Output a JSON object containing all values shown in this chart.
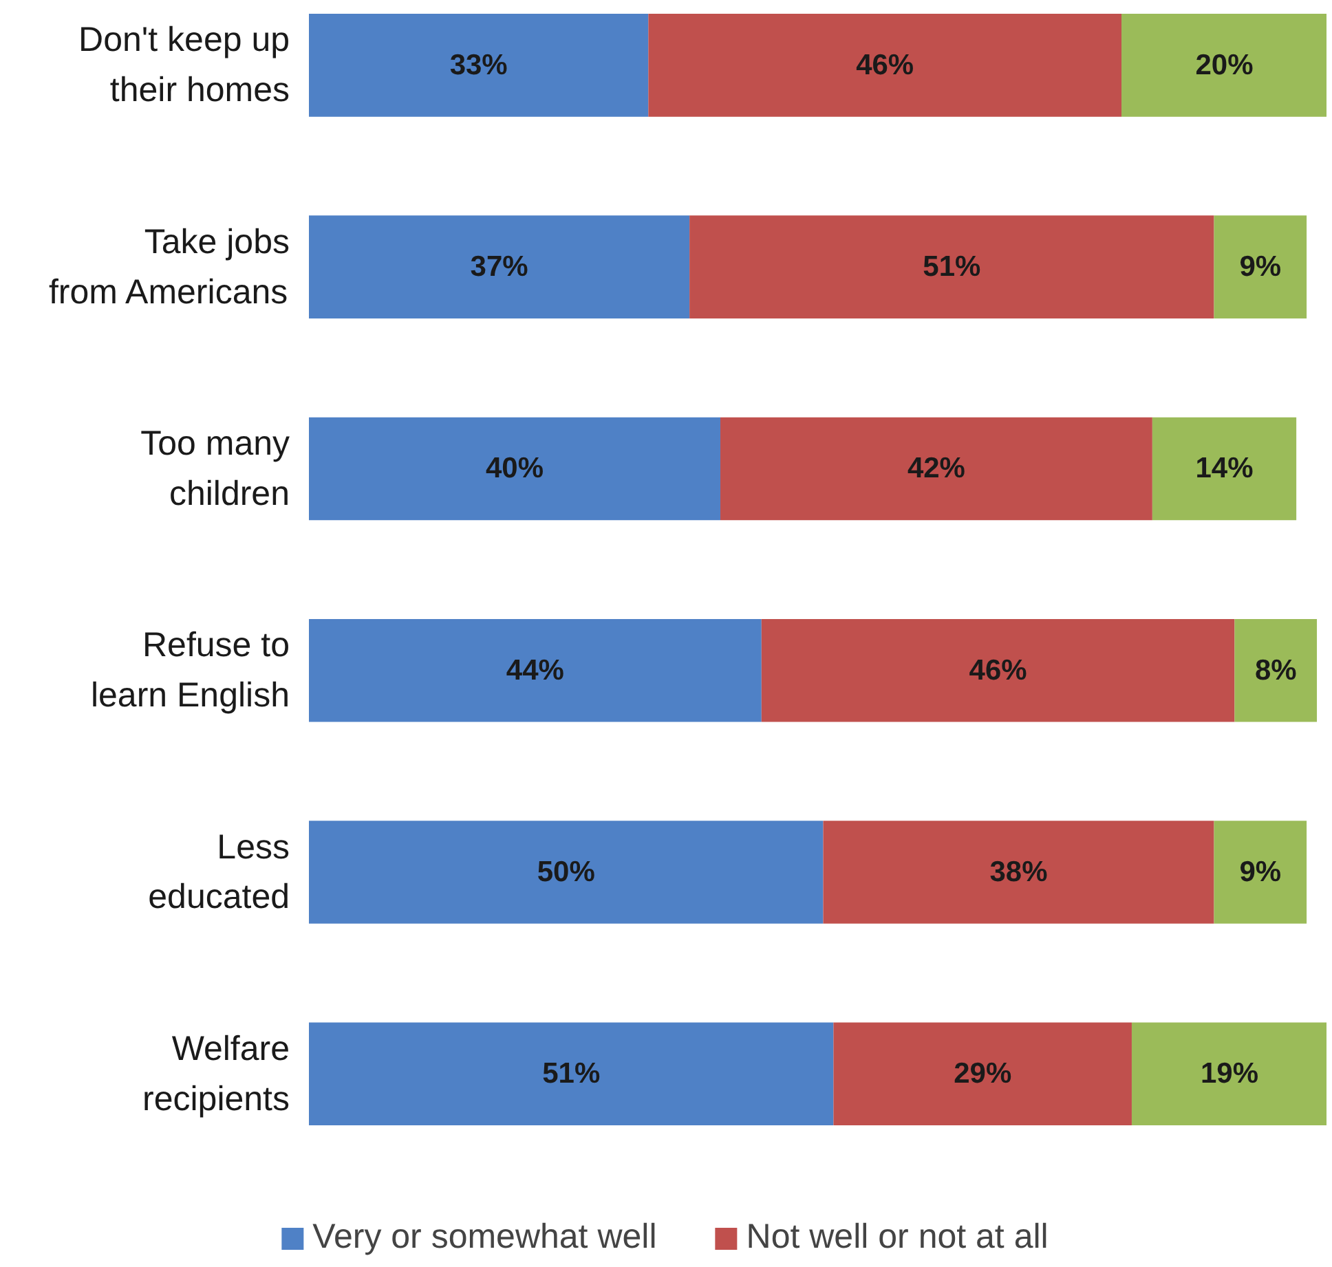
{
  "chart_data": {
    "type": "bar",
    "orientation": "horizontal",
    "stacked": true,
    "legend": "bottom",
    "grid": false,
    "tick_labels": false,
    "categories": [
      "Don't keep up their homes",
      "Take jobs from Americans",
      "Too many children",
      "Refuse to learn English",
      "Less educated",
      "Welfare recipients"
    ],
    "series": [
      {
        "name": "Very or somewhat well",
        "color": "#4f81c6",
        "values": [
          33,
          37,
          40,
          44,
          50,
          51
        ],
        "value_labels": [
          "33%",
          "37%",
          "40%",
          "44%",
          "50%",
          "51%"
        ]
      },
      {
        "name": "Not well or not at all",
        "color": "#c0504d",
        "values": [
          46,
          51,
          42,
          46,
          38,
          29
        ],
        "value_labels": [
          "46%",
          "51%",
          "42%",
          "46%",
          "38%",
          "29%"
        ]
      },
      {
        "color": "#9bbb59",
        "values": [
          20,
          9,
          14,
          8,
          9,
          19
        ],
        "value_labels": [
          "20%",
          "9%",
          "14%",
          "8%",
          "9%",
          "19%"
        ]
      }
    ]
  }
}
